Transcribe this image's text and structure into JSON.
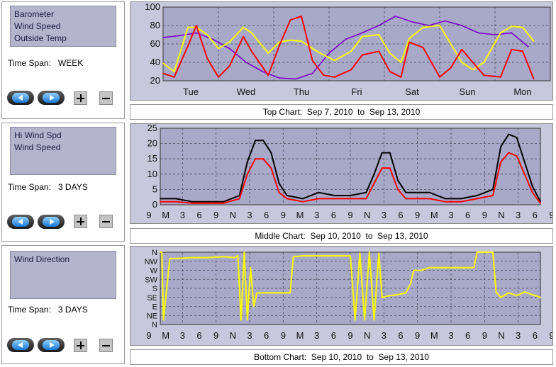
{
  "panels": [
    {
      "items": [
        "Barometer",
        "Wind Speed",
        "Outside Temp"
      ],
      "time_span_label": "Time Span:",
      "time_span_value": "WEEK"
    },
    {
      "items": [
        "Hi Wind Spd",
        "Wind Speed"
      ],
      "time_span_label": "Time Span:",
      "time_span_value": "3 DAYS"
    },
    {
      "items": [
        "Wind Direction"
      ],
      "time_span_label": "Time Span:",
      "time_span_value": "3 DAYS"
    }
  ],
  "captions": [
    "Top Chart:  Sep 7, 2010  to  Sep 13, 2010",
    "Middle Chart:  Sep 10, 2010  to  Sep 13, 2010",
    "Bottom Chart:  Sep 10, 2010  to  Sep 13, 2010"
  ],
  "colors": {
    "plot_bg": "#a8a8c8",
    "grid": "#4a4a5a",
    "barometer": "#7a00c8",
    "wind_speed": "#ff0000",
    "outside_temp": "#ffff00",
    "hi_wind": "#000000",
    "wind_direction": "#ffff00"
  },
  "chart_data": [
    {
      "type": "line",
      "title": "",
      "xlabel": "",
      "ylabel": "",
      "ylim": [
        20,
        100
      ],
      "y_ticks": [
        20,
        40,
        60,
        80,
        100
      ],
      "x_tick_labels": [
        "Tue",
        "Wed",
        "Thu",
        "Fri",
        "Sat",
        "Sun",
        "Mon"
      ],
      "grid": true,
      "series": [
        {
          "name": "",
          "color_key": "barometer",
          "x": [
            0,
            0.3,
            0.6,
            0.9,
            1.2,
            1.5,
            1.8,
            2.1,
            2.4,
            2.7,
            3.0,
            3.3,
            3.6,
            3.9,
            4.2,
            4.5,
            4.8,
            5.1,
            5.4,
            5.7,
            6.0,
            6.3,
            6.6
          ],
          "y": [
            67,
            69,
            72,
            65,
            55,
            40,
            30,
            23,
            22,
            28,
            50,
            65,
            72,
            80,
            90,
            84,
            80,
            85,
            80,
            72,
            70,
            72,
            57
          ]
        },
        {
          "name": "",
          "color_key": "outside_temp",
          "x": [
            0,
            0.2,
            0.45,
            0.6,
            0.8,
            1.0,
            1.2,
            1.45,
            1.6,
            1.9,
            2.1,
            2.3,
            2.5,
            2.7,
            2.9,
            3.1,
            3.4,
            3.6,
            3.9,
            4.1,
            4.3,
            4.45,
            4.7,
            5.0,
            5.2,
            5.4,
            5.6,
            5.8,
            6.1,
            6.3,
            6.5,
            6.7
          ],
          "y": [
            39,
            30,
            78,
            78,
            70,
            55,
            62,
            78,
            72,
            50,
            62,
            64,
            63,
            55,
            48,
            42,
            52,
            68,
            70,
            50,
            40,
            66,
            78,
            80,
            60,
            40,
            32,
            40,
            72,
            79,
            78,
            63
          ]
        },
        {
          "name": "",
          "color_key": "wind_speed",
          "x": [
            0,
            0.2,
            0.45,
            0.6,
            0.8,
            1.0,
            1.2,
            1.45,
            1.6,
            1.9,
            2.1,
            2.3,
            2.5,
            2.7,
            2.9,
            3.1,
            3.4,
            3.6,
            3.9,
            4.1,
            4.3,
            4.45,
            4.7,
            5.0,
            5.2,
            5.4,
            5.6,
            5.8,
            6.1,
            6.3,
            6.5,
            6.7
          ],
          "y": [
            28,
            24,
            58,
            80,
            44,
            24,
            36,
            68,
            52,
            26,
            58,
            86,
            90,
            42,
            26,
            24,
            32,
            48,
            52,
            30,
            24,
            62,
            56,
            24,
            34,
            54,
            40,
            26,
            24,
            54,
            52,
            22
          ]
        }
      ]
    },
    {
      "type": "line",
      "title": "",
      "xlabel": "",
      "ylabel": "",
      "ylim": [
        0,
        25
      ],
      "y_ticks": [
        0,
        5,
        10,
        15,
        20,
        25
      ],
      "x_tick_labels": [
        "9",
        "M",
        "3",
        "6",
        "9",
        "N",
        "3",
        "6",
        "9",
        "M",
        "3",
        "6",
        "9",
        "N",
        "3",
        "6",
        "9",
        "M",
        "3",
        "6",
        "9",
        "N",
        "3",
        "6",
        "9"
      ],
      "grid": true,
      "series": [
        {
          "name": "",
          "color_key": "hi_wind",
          "x": [
            0,
            1,
            2,
            3,
            4,
            5,
            5.5,
            6,
            6.5,
            7,
            7.5,
            8,
            9,
            10,
            11,
            12,
            13,
            13.5,
            14,
            14.5,
            15,
            15.5,
            16,
            17,
            18,
            19,
            20,
            21,
            21.5,
            22,
            22.5,
            23,
            23.5,
            24
          ],
          "y": [
            2,
            2,
            1,
            1,
            1,
            3,
            14,
            21,
            21,
            17,
            7,
            3,
            2,
            4,
            3,
            3,
            4,
            10,
            17,
            17,
            8,
            4,
            4,
            4,
            2,
            2,
            3,
            5,
            19,
            23,
            22,
            14,
            6,
            1
          ]
        },
        {
          "name": "",
          "color_key": "wind_speed",
          "x": [
            0,
            1,
            2,
            3,
            4,
            5,
            5.5,
            6,
            6.5,
            7,
            7.5,
            8,
            9,
            10,
            11,
            12,
            13,
            13.5,
            14,
            14.5,
            15,
            15.5,
            16,
            17,
            18,
            19,
            20,
            21,
            21.5,
            22,
            22.5,
            23,
            23.5,
            24
          ],
          "y": [
            1,
            1,
            0.5,
            0.5,
            0.5,
            2,
            10,
            15,
            15,
            12,
            4,
            2,
            1,
            2,
            2,
            2,
            2,
            7,
            12,
            12,
            5,
            2,
            2,
            2,
            1,
            1,
            2,
            3,
            14,
            17,
            16,
            10,
            4,
            0.5
          ]
        }
      ]
    },
    {
      "type": "line",
      "title": "",
      "xlabel": "",
      "ylabel": "",
      "y_tick_labels": [
        "N",
        "NW",
        "W",
        "SW",
        "S",
        "SE",
        "E",
        "NE",
        "N"
      ],
      "x_tick_labels": [
        "9",
        "M",
        "3",
        "6",
        "9",
        "N",
        "3",
        "6",
        "9",
        "M",
        "3",
        "6",
        "9",
        "N",
        "3",
        "6",
        "9",
        "M",
        "3",
        "6",
        "9",
        "N",
        "3",
        "6",
        "9"
      ],
      "grid": true,
      "series": [
        {
          "name": "",
          "color_key": "wind_direction",
          "x": [
            0,
            0.1,
            0.2,
            0.6,
            1,
            2,
            3,
            4,
            4.7,
            4.9,
            5.1,
            5.3,
            5.5,
            5.7,
            5.9,
            6.1,
            6.5,
            7,
            7.5,
            8,
            8.2,
            8.4,
            9,
            10,
            11,
            12,
            12.3,
            12.6,
            12.9,
            13.2,
            13.5,
            13.8,
            14,
            14.5,
            15,
            15.5,
            15.8,
            16,
            16.5,
            17,
            18,
            19,
            19.8,
            20,
            20.2,
            20.5,
            21,
            21.2,
            21.5,
            22,
            22.5,
            23,
            23.5,
            24
          ],
          "y": [
            8,
            8,
            0.5,
            7.3,
            7.3,
            7.4,
            7.4,
            7.5,
            7.4,
            7.6,
            0.5,
            8,
            0.5,
            6.3,
            2,
            3.5,
            3.5,
            3.5,
            3.5,
            3.5,
            3.5,
            7.5,
            7.6,
            7.6,
            7.6,
            7.6,
            0.5,
            7.9,
            0.5,
            8,
            0.5,
            7.9,
            3.0,
            3.2,
            3.3,
            3.5,
            4.5,
            6.0,
            6.0,
            6.3,
            6.3,
            6.3,
            6.3,
            8.0,
            8.0,
            8.0,
            8.0,
            3.6,
            3.0,
            3.5,
            3.2,
            3.6,
            3.3,
            3.0
          ]
        }
      ]
    }
  ]
}
